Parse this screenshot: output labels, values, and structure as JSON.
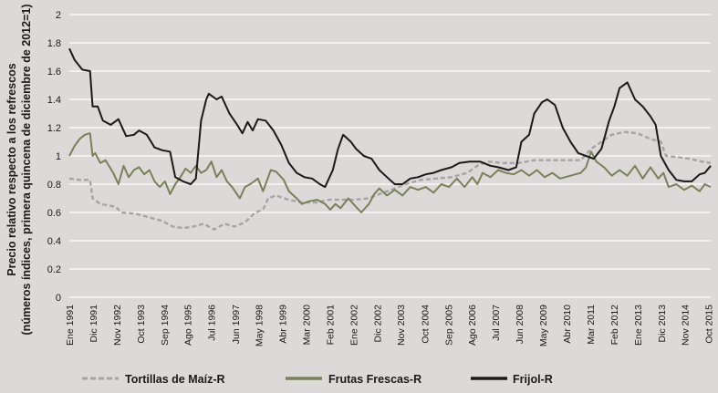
{
  "chart_data": {
    "type": "line",
    "title": "",
    "ylabel_line1": "Precio relativo respecto a los refrescos",
    "ylabel_line2": "(números índices, primera quincena de diciembre de 2012=1)",
    "xlabel": "",
    "ylim": [
      0,
      2
    ],
    "yticks": [
      0,
      0.2,
      0.4,
      0.6,
      0.8,
      1,
      1.2,
      1.4,
      1.6,
      1.8,
      2
    ],
    "ytick_labels": [
      "0",
      "0.2",
      "0.4",
      "0.6",
      "0.8",
      "1",
      "1.2",
      "1.4",
      "1.6",
      "1.8",
      "2"
    ],
    "xlim": [
      1991.0,
      2015.83
    ],
    "xticks": [
      {
        "x": 1991.0,
        "label": "Ene 1991"
      },
      {
        "x": 1991.92,
        "label": "Dic 1991"
      },
      {
        "x": 1992.83,
        "label": "Nov 1992"
      },
      {
        "x": 1993.75,
        "label": "Oct 1993"
      },
      {
        "x": 1994.67,
        "label": "Sep 1994"
      },
      {
        "x": 1995.58,
        "label": "Ago 1995"
      },
      {
        "x": 1996.5,
        "label": "Jul 1996"
      },
      {
        "x": 1997.42,
        "label": "Jun 1997"
      },
      {
        "x": 1998.33,
        "label": "May 1998"
      },
      {
        "x": 1999.25,
        "label": "Abr 1999"
      },
      {
        "x": 2000.17,
        "label": "Mar 2000"
      },
      {
        "x": 2001.08,
        "label": "Feb 2001"
      },
      {
        "x": 2002.0,
        "label": "Ene 2002"
      },
      {
        "x": 2002.92,
        "label": "Dic 2002"
      },
      {
        "x": 2003.83,
        "label": "Nov 2003"
      },
      {
        "x": 2004.75,
        "label": "Oct 2004"
      },
      {
        "x": 2005.67,
        "label": "Sep 2005"
      },
      {
        "x": 2006.58,
        "label": "Ago 2006"
      },
      {
        "x": 2007.5,
        "label": "Jul 2007"
      },
      {
        "x": 2008.42,
        "label": "Jun 2008"
      },
      {
        "x": 2009.33,
        "label": "May 2009"
      },
      {
        "x": 2010.25,
        "label": "Abr 2010"
      },
      {
        "x": 2011.17,
        "label": "Mar 2011"
      },
      {
        "x": 2012.08,
        "label": "Feb 2012"
      },
      {
        "x": 2013.0,
        "label": "Ene 2013"
      },
      {
        "x": 2013.92,
        "label": "Dic 2013"
      },
      {
        "x": 2014.83,
        "label": "Nov 2014"
      },
      {
        "x": 2015.75,
        "label": "Oct 2015"
      }
    ],
    "grid": "horizontal",
    "legend_position": "bottom",
    "series": [
      {
        "name": "Tortillas de Maíz-R",
        "color": "#a5a5a5",
        "style": "dashed",
        "points": [
          [
            1991.0,
            0.84
          ],
          [
            1991.4,
            0.83
          ],
          [
            1991.8,
            0.83
          ],
          [
            1991.9,
            0.7
          ],
          [
            1992.2,
            0.66
          ],
          [
            1992.8,
            0.64
          ],
          [
            1993.0,
            0.6
          ],
          [
            1993.6,
            0.59
          ],
          [
            1994.0,
            0.57
          ],
          [
            1994.6,
            0.54
          ],
          [
            1995.0,
            0.5
          ],
          [
            1995.4,
            0.49
          ],
          [
            1995.8,
            0.5
          ],
          [
            1996.2,
            0.52
          ],
          [
            1996.6,
            0.48
          ],
          [
            1997.0,
            0.52
          ],
          [
            1997.4,
            0.5
          ],
          [
            1997.8,
            0.53
          ],
          [
            1998.2,
            0.6
          ],
          [
            1998.5,
            0.62
          ],
          [
            1998.7,
            0.7
          ],
          [
            1999.0,
            0.72
          ],
          [
            1999.5,
            0.69
          ],
          [
            2000.0,
            0.67
          ],
          [
            2000.6,
            0.67
          ],
          [
            2001.0,
            0.69
          ],
          [
            2001.6,
            0.69
          ],
          [
            2002.0,
            0.69
          ],
          [
            2002.6,
            0.7
          ],
          [
            2003.0,
            0.73
          ],
          [
            2003.6,
            0.77
          ],
          [
            2004.0,
            0.8
          ],
          [
            2004.6,
            0.83
          ],
          [
            2005.2,
            0.84
          ],
          [
            2005.8,
            0.85
          ],
          [
            2006.4,
            0.88
          ],
          [
            2006.8,
            0.93
          ],
          [
            2007.2,
            0.96
          ],
          [
            2007.8,
            0.95
          ],
          [
            2008.4,
            0.95
          ],
          [
            2009.0,
            0.97
          ],
          [
            2009.6,
            0.97
          ],
          [
            2010.2,
            0.97
          ],
          [
            2010.8,
            0.97
          ],
          [
            2011.2,
            1.05
          ],
          [
            2011.6,
            1.1
          ],
          [
            2012.0,
            1.15
          ],
          [
            2012.5,
            1.17
          ],
          [
            2013.0,
            1.16
          ],
          [
            2013.5,
            1.12
          ],
          [
            2013.9,
            1.1
          ],
          [
            2014.1,
            1.0
          ],
          [
            2014.6,
            0.99
          ],
          [
            2015.0,
            0.98
          ],
          [
            2015.5,
            0.96
          ],
          [
            2015.83,
            0.95
          ]
        ]
      },
      {
        "name": "Frutas Frescas-R",
        "color": "#78815a",
        "style": "solid",
        "points": [
          [
            1991.0,
            1.0
          ],
          [
            1991.2,
            1.07
          ],
          [
            1991.4,
            1.12
          ],
          [
            1991.6,
            1.15
          ],
          [
            1991.8,
            1.16
          ],
          [
            1991.9,
            1.0
          ],
          [
            1992.0,
            1.02
          ],
          [
            1992.2,
            0.95
          ],
          [
            1992.4,
            0.97
          ],
          [
            1992.7,
            0.88
          ],
          [
            1992.9,
            0.8
          ],
          [
            1993.1,
            0.93
          ],
          [
            1993.3,
            0.85
          ],
          [
            1993.5,
            0.9
          ],
          [
            1993.7,
            0.92
          ],
          [
            1993.9,
            0.87
          ],
          [
            1994.1,
            0.9
          ],
          [
            1994.3,
            0.82
          ],
          [
            1994.5,
            0.78
          ],
          [
            1994.7,
            0.82
          ],
          [
            1994.9,
            0.73
          ],
          [
            1995.1,
            0.8
          ],
          [
            1995.3,
            0.85
          ],
          [
            1995.5,
            0.91
          ],
          [
            1995.7,
            0.88
          ],
          [
            1995.9,
            0.93
          ],
          [
            1996.1,
            0.88
          ],
          [
            1996.3,
            0.9
          ],
          [
            1996.5,
            0.96
          ],
          [
            1996.7,
            0.85
          ],
          [
            1996.9,
            0.9
          ],
          [
            1997.1,
            0.82
          ],
          [
            1997.3,
            0.78
          ],
          [
            1997.6,
            0.7
          ],
          [
            1997.8,
            0.78
          ],
          [
            1998.0,
            0.8
          ],
          [
            1998.3,
            0.84
          ],
          [
            1998.5,
            0.75
          ],
          [
            1998.8,
            0.9
          ],
          [
            1999.0,
            0.89
          ],
          [
            1999.3,
            0.83
          ],
          [
            1999.5,
            0.75
          ],
          [
            1999.8,
            0.7
          ],
          [
            2000.0,
            0.66
          ],
          [
            2000.3,
            0.68
          ],
          [
            2000.6,
            0.69
          ],
          [
            2000.9,
            0.66
          ],
          [
            2001.1,
            0.62
          ],
          [
            2001.3,
            0.66
          ],
          [
            2001.5,
            0.63
          ],
          [
            2001.8,
            0.7
          ],
          [
            2002.0,
            0.66
          ],
          [
            2002.3,
            0.6
          ],
          [
            2002.6,
            0.66
          ],
          [
            2002.8,
            0.73
          ],
          [
            2003.0,
            0.77
          ],
          [
            2003.3,
            0.72
          ],
          [
            2003.6,
            0.76
          ],
          [
            2003.9,
            0.72
          ],
          [
            2004.2,
            0.78
          ],
          [
            2004.5,
            0.76
          ],
          [
            2004.8,
            0.78
          ],
          [
            2005.1,
            0.74
          ],
          [
            2005.4,
            0.8
          ],
          [
            2005.7,
            0.78
          ],
          [
            2006.0,
            0.84
          ],
          [
            2006.3,
            0.78
          ],
          [
            2006.6,
            0.85
          ],
          [
            2006.8,
            0.8
          ],
          [
            2007.0,
            0.88
          ],
          [
            2007.3,
            0.85
          ],
          [
            2007.6,
            0.9
          ],
          [
            2007.9,
            0.88
          ],
          [
            2008.2,
            0.87
          ],
          [
            2008.5,
            0.9
          ],
          [
            2008.8,
            0.86
          ],
          [
            2009.1,
            0.9
          ],
          [
            2009.4,
            0.85
          ],
          [
            2009.7,
            0.88
          ],
          [
            2010.0,
            0.84
          ],
          [
            2010.4,
            0.86
          ],
          [
            2010.8,
            0.88
          ],
          [
            2011.0,
            0.92
          ],
          [
            2011.2,
            1.03
          ],
          [
            2011.4,
            0.96
          ],
          [
            2011.7,
            0.92
          ],
          [
            2012.0,
            0.86
          ],
          [
            2012.3,
            0.9
          ],
          [
            2012.6,
            0.86
          ],
          [
            2012.9,
            0.93
          ],
          [
            2013.2,
            0.84
          ],
          [
            2013.5,
            0.92
          ],
          [
            2013.8,
            0.84
          ],
          [
            2014.0,
            0.88
          ],
          [
            2014.2,
            0.78
          ],
          [
            2014.5,
            0.8
          ],
          [
            2014.8,
            0.76
          ],
          [
            2015.1,
            0.79
          ],
          [
            2015.4,
            0.75
          ],
          [
            2015.6,
            0.8
          ],
          [
            2015.83,
            0.78
          ]
        ]
      },
      {
        "name": "Frijol-R",
        "color": "#1a1a1a",
        "style": "solid",
        "points": [
          [
            1991.0,
            1.76
          ],
          [
            1991.2,
            1.68
          ],
          [
            1991.5,
            1.61
          ],
          [
            1991.8,
            1.6
          ],
          [
            1991.9,
            1.35
          ],
          [
            1992.1,
            1.35
          ],
          [
            1992.3,
            1.25
          ],
          [
            1992.6,
            1.22
          ],
          [
            1992.9,
            1.26
          ],
          [
            1993.2,
            1.14
          ],
          [
            1993.5,
            1.15
          ],
          [
            1993.7,
            1.18
          ],
          [
            1994.0,
            1.15
          ],
          [
            1994.3,
            1.06
          ],
          [
            1994.6,
            1.04
          ],
          [
            1994.9,
            1.03
          ],
          [
            1995.1,
            0.85
          ],
          [
            1995.4,
            0.82
          ],
          [
            1995.7,
            0.8
          ],
          [
            1995.9,
            0.84
          ],
          [
            1996.1,
            1.25
          ],
          [
            1996.3,
            1.4
          ],
          [
            1996.4,
            1.44
          ],
          [
            1996.7,
            1.4
          ],
          [
            1996.9,
            1.42
          ],
          [
            1997.2,
            1.3
          ],
          [
            1997.5,
            1.22
          ],
          [
            1997.7,
            1.16
          ],
          [
            1997.9,
            1.24
          ],
          [
            1998.1,
            1.18
          ],
          [
            1998.3,
            1.26
          ],
          [
            1998.6,
            1.25
          ],
          [
            1998.9,
            1.18
          ],
          [
            1999.2,
            1.08
          ],
          [
            1999.5,
            0.95
          ],
          [
            1999.8,
            0.88
          ],
          [
            2000.1,
            0.85
          ],
          [
            2000.4,
            0.84
          ],
          [
            2000.7,
            0.8
          ],
          [
            2000.9,
            0.78
          ],
          [
            2001.2,
            0.9
          ],
          [
            2001.4,
            1.05
          ],
          [
            2001.6,
            1.15
          ],
          [
            2001.9,
            1.1
          ],
          [
            2002.1,
            1.05
          ],
          [
            2002.4,
            1.0
          ],
          [
            2002.7,
            0.98
          ],
          [
            2003.0,
            0.9
          ],
          [
            2003.3,
            0.85
          ],
          [
            2003.6,
            0.8
          ],
          [
            2003.9,
            0.8
          ],
          [
            2004.2,
            0.84
          ],
          [
            2004.5,
            0.85
          ],
          [
            2004.8,
            0.87
          ],
          [
            2005.1,
            0.88
          ],
          [
            2005.4,
            0.9
          ],
          [
            2005.8,
            0.92
          ],
          [
            2006.1,
            0.95
          ],
          [
            2006.5,
            0.96
          ],
          [
            2006.9,
            0.96
          ],
          [
            2007.3,
            0.93
          ],
          [
            2007.6,
            0.92
          ],
          [
            2008.0,
            0.9
          ],
          [
            2008.3,
            0.92
          ],
          [
            2008.5,
            1.1
          ],
          [
            2008.8,
            1.15
          ],
          [
            2009.0,
            1.3
          ],
          [
            2009.3,
            1.38
          ],
          [
            2009.5,
            1.4
          ],
          [
            2009.8,
            1.36
          ],
          [
            2010.1,
            1.2
          ],
          [
            2010.4,
            1.1
          ],
          [
            2010.7,
            1.02
          ],
          [
            2011.0,
            1.0
          ],
          [
            2011.3,
            0.98
          ],
          [
            2011.6,
            1.05
          ],
          [
            2011.9,
            1.25
          ],
          [
            2012.1,
            1.35
          ],
          [
            2012.3,
            1.48
          ],
          [
            2012.6,
            1.52
          ],
          [
            2012.9,
            1.4
          ],
          [
            2013.2,
            1.35
          ],
          [
            2013.5,
            1.28
          ],
          [
            2013.7,
            1.22
          ],
          [
            2013.9,
            1.0
          ],
          [
            2014.2,
            0.9
          ],
          [
            2014.5,
            0.83
          ],
          [
            2014.8,
            0.82
          ],
          [
            2015.1,
            0.82
          ],
          [
            2015.4,
            0.87
          ],
          [
            2015.6,
            0.88
          ],
          [
            2015.83,
            0.93
          ]
        ]
      }
    ]
  }
}
